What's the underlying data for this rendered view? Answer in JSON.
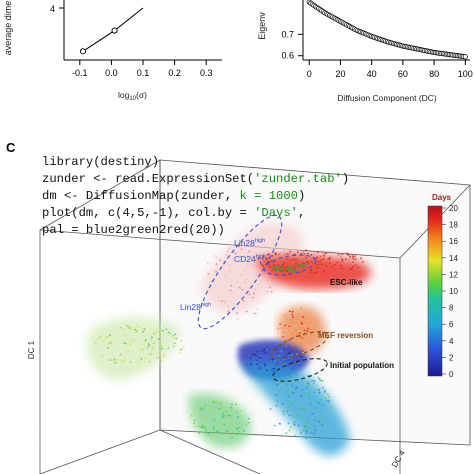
{
  "panel_a": {
    "ylabel": "average dime",
    "xlabel_base": "log",
    "xlabel_sub": "10",
    "xlabel_arg": "(σ)",
    "x_ticks": [
      "-0.1",
      "0.0",
      "0.1",
      "0.2",
      "0.3"
    ],
    "y_ticks": [
      "4"
    ]
  },
  "panel_b": {
    "ylabel": "Eigenv",
    "xlabel": "Diffusion Component (DC)",
    "x_ticks": [
      "0",
      "20",
      "40",
      "60",
      "80",
      "100"
    ],
    "y_ticks": [
      "0.7",
      "0.6"
    ]
  },
  "panel_c": {
    "letter": "C",
    "code_lines": [
      {
        "a": "library(destiny)",
        "s": "",
        "b": ""
      },
      {
        "a": "zunder <- read.ExpressionSet(",
        "s": "'zunder.tab'",
        "b": ")"
      },
      {
        "a": "dm <- DiffusionMap(zunder, ",
        "s": "k = 1000",
        "b": ")"
      },
      {
        "a": "plot(dm, c(4,5,-1), col.by = ",
        "s": "'Days'",
        "b": ","
      },
      {
        "a": "     pal = blue2green2red(20))",
        "s": "",
        "b": ""
      }
    ],
    "axis_dc1": "DC 1",
    "axis_dc4": "DC 4",
    "legend_title": "Days",
    "legend_ticks": [
      "20",
      "18",
      "16",
      "14",
      "12",
      "10",
      "8",
      "6",
      "4",
      "2",
      "0"
    ],
    "annotations": {
      "lin28_cd24_a": "Lin28",
      "lin28_cd24_a_sup": "high",
      "lin28_cd24_b": "CD24",
      "lin28_cd24_b_sup": "high",
      "lin28": "Lin28",
      "lin28_sup": "high",
      "nanog": "Nanog",
      "nanog_sup": "high",
      "esc_like": "ESC-like",
      "mef_reversion": "MEF reversion",
      "initial_population": "Initial population"
    },
    "colors": {
      "blue_label": "#3a4fd6",
      "green_label": "#2e9a34",
      "brown_label": "#8a4a12"
    }
  },
  "chart_data": [
    {
      "type": "line",
      "x": [
        -0.09,
        0.01,
        0.1
      ],
      "y": [
        1.5,
        2.7,
        4.0
      ],
      "xlim": [
        -0.15,
        0.35
      ],
      "ylim": [
        1.0,
        4.0
      ]
    },
    {
      "type": "line",
      "x": [
        0,
        10,
        20,
        30,
        40,
        50,
        60,
        70,
        80,
        90,
        100
      ],
      "y": [
        0.85,
        0.8,
        0.76,
        0.72,
        0.69,
        0.665,
        0.645,
        0.63,
        0.615,
        0.605,
        0.595
      ],
      "xlim": [
        -4,
        103
      ],
      "ylim": [
        0.58,
        0.86
      ]
    },
    {
      "type": "scatter",
      "colorbar": {
        "min": 0,
        "max": 20
      }
    }
  ]
}
